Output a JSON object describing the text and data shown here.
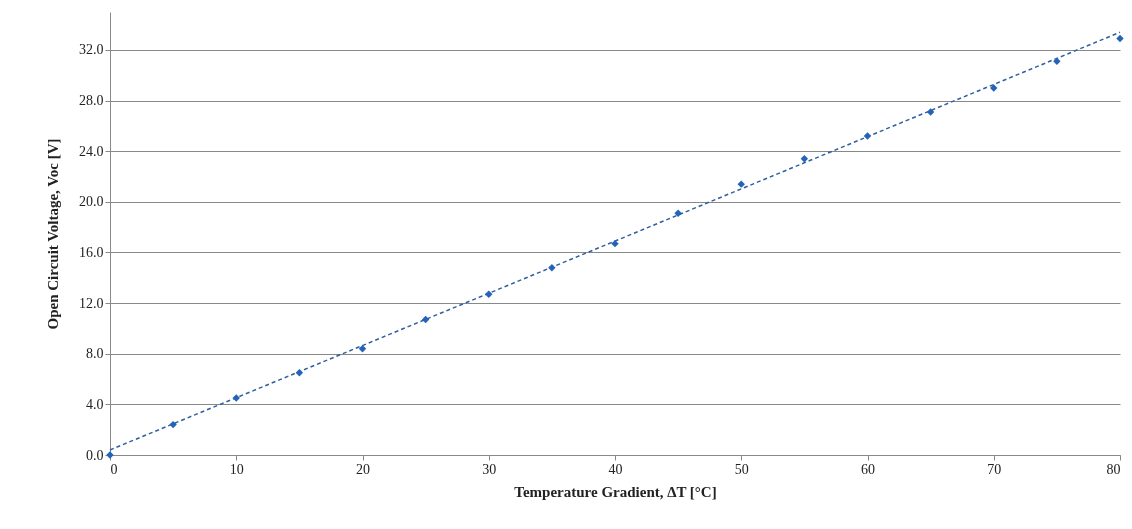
{
  "chart_data": {
    "type": "scatter",
    "xlabel": "Temperature Gradient, ∆T [°C]",
    "ylabel": "Open Circuit Voltage, Voc [V]",
    "x": [
      0,
      5,
      10,
      15,
      20,
      25,
      30,
      35,
      40,
      45,
      50,
      55,
      60,
      65,
      70,
      75,
      80
    ],
    "series": [
      {
        "color": "#2563b8",
        "marker": "diamond",
        "values": [
          0,
          2.4,
          4.5,
          6.5,
          8.4,
          10.7,
          12.7,
          14.8,
          16.7,
          19.1,
          21.4,
          23.4,
          25.2,
          27.1,
          29.0,
          31.1,
          32.9
        ]
      },
      {
        "type": "line",
        "color": "#2e5f9e",
        "x": [
          0,
          80
        ],
        "values": [
          0.4,
          33.4
        ],
        "line_style": "dashed"
      }
    ],
    "xlim": [
      0,
      80
    ],
    "xticks": [
      0,
      10,
      20,
      30,
      40,
      50,
      60,
      70,
      80
    ],
    "ylim": [
      0,
      35
    ],
    "yticks": [
      {
        "value": 0,
        "label": "0.0"
      },
      {
        "value": 4,
        "label": "4.0"
      },
      {
        "value": 8,
        "label": "8.0"
      },
      {
        "value": 12,
        "label": "12.0"
      },
      {
        "value": 16,
        "label": "16.0"
      },
      {
        "value": 20,
        "label": "20.0"
      },
      {
        "value": 24,
        "label": "24.0"
      },
      {
        "value": 28,
        "label": "28.0"
      },
      {
        "value": 32,
        "label": "32.0"
      }
    ],
    "grid": "y"
  }
}
